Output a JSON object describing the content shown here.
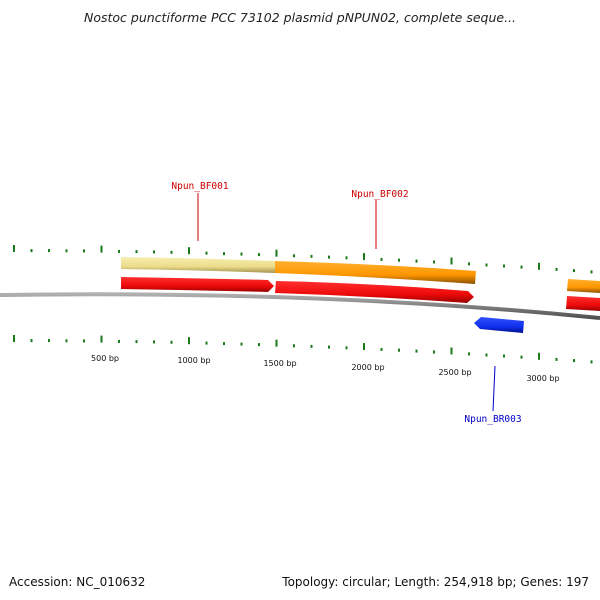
{
  "title": "Nostoc punctiforme PCC 73102 plasmid pNPUN02, complete seque...",
  "footer": {
    "accession": "Accession: NC_010632",
    "topology": "Topology: circular; Length: 254,918 bp; Genes: 197"
  },
  "scale_labels": [
    "500 bp",
    "1000 bp",
    "1500 bp",
    "2000 bp",
    "2500 bp",
    "3000 bp"
  ],
  "gene_labels": [
    {
      "text": "Npun_BF001",
      "color": "#cc0000"
    },
    {
      "text": "Npun_BF002",
      "color": "#cc0000"
    },
    {
      "text": "Npun_BR003",
      "color": "#0000cc"
    }
  ],
  "colors": {
    "backbone": "#808080",
    "tick": "#1a7a1a",
    "gene_pale": "#f0e090",
    "gene_orange": "#ff9900",
    "gene_red": "#ee1111",
    "gene_blue": "#1133ee"
  }
}
